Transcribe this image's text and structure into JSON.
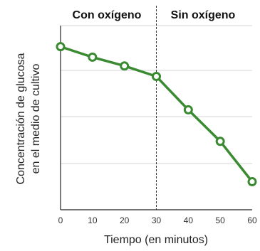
{
  "chart_data": {
    "type": "line",
    "title": "",
    "xlabel": "Tiempo (en minutos)",
    "ylabel_lines": [
      "Concentración de glucosa",
      "en el medio de cultivo"
    ],
    "x": [
      0,
      10,
      20,
      30,
      40,
      50,
      60
    ],
    "values": [
      0.93,
      0.87,
      0.82,
      0.76,
      0.57,
      0.39,
      0.16
    ],
    "xlim": [
      0,
      60
    ],
    "ylim": [
      0,
      1.05
    ],
    "y_tick_labels_shown": false,
    "grid": "horizontal",
    "regions": [
      {
        "label": "Con oxígeno",
        "from": 0,
        "to": 30
      },
      {
        "label": "Sin oxígeno",
        "from": 30,
        "to": 60
      }
    ],
    "divider_x": 30,
    "colors": {
      "line": "#3a8a32",
      "marker_fill": "#ffffff",
      "grid": "#d4d4d4",
      "divider": "#333333"
    }
  }
}
